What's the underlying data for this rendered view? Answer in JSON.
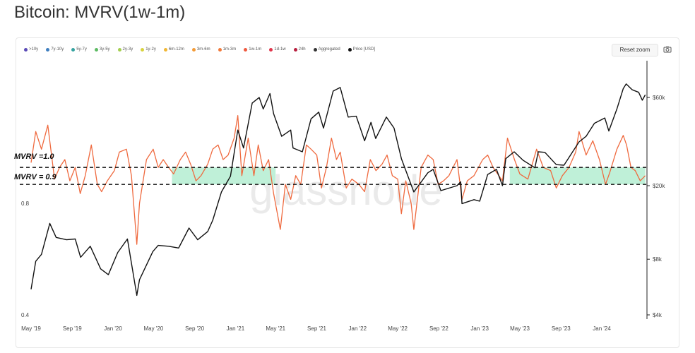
{
  "title": "Bitcoin: MVRV(1w-1m)",
  "legend": [
    {
      "label": ">10y",
      "color": "#5b4bb7"
    },
    {
      "label": "7y-10y",
      "color": "#3f7fc0"
    },
    {
      "label": "5y-7y",
      "color": "#36a3a0"
    },
    {
      "label": "3y-5y",
      "color": "#5dbb63"
    },
    {
      "label": "2y-3y",
      "color": "#a4cf4f"
    },
    {
      "label": "1y-2y",
      "color": "#d8d33e"
    },
    {
      "label": "6m-12m",
      "color": "#f1b735"
    },
    {
      "label": "3m-6m",
      "color": "#f39b38"
    },
    {
      "label": "1m-3m",
      "color": "#f27a3b"
    },
    {
      "label": "1w-1m",
      "color": "#ef5a3f"
    },
    {
      "label": "1d-1w",
      "color": "#e0354b"
    },
    {
      "label": "24h",
      "color": "#b8203f"
    },
    {
      "label": "Aggregated",
      "color": "#333333"
    },
    {
      "label": "Price [USD]",
      "color": "#111111"
    }
  ],
  "toolbar": {
    "reset_label": "Reset zoom",
    "camera_icon": "camera-icon"
  },
  "watermark": "glassnode",
  "annotations": {
    "upper": "MVRV =1.0",
    "lower": "MVRV = 0.9",
    "band_color": "#bff0d8"
  },
  "chart_data": {
    "type": "line",
    "x": [
      "May '19",
      "Sep '19",
      "Jan '20",
      "May '20",
      "Sep '20",
      "Jan '21",
      "May '21",
      "Sep '21",
      "Jan '22",
      "May '22",
      "Sep '22",
      "Jan '23",
      "May '23",
      "Sep '23",
      "Jan '24"
    ],
    "left_axis": {
      "scale": "log",
      "ticks": [
        "0.8",
        "0.4"
      ],
      "ylim": [
        0.4,
        1.5
      ]
    },
    "right_axis": {
      "scale": "log",
      "ticks": [
        "$60k",
        "$20k",
        "$8k",
        "$4k"
      ],
      "ylim": [
        4000,
        90000
      ]
    },
    "colors": {
      "price": "#111111",
      "mvrv": "#ef6a3f"
    },
    "series": [
      {
        "name": "1w-1m",
        "axis": "left",
        "points": [
          [
            "2019-05-01",
            1.03
          ],
          [
            "2019-05-15",
            1.25
          ],
          [
            "2019-06-01",
            1.12
          ],
          [
            "2019-06-20",
            1.3
          ],
          [
            "2019-07-10",
            0.93
          ],
          [
            "2019-07-25",
            1.0
          ],
          [
            "2019-08-10",
            1.05
          ],
          [
            "2019-08-25",
            0.92
          ],
          [
            "2019-09-10",
            1.0
          ],
          [
            "2019-09-25",
            0.85
          ],
          [
            "2019-10-10",
            0.95
          ],
          [
            "2019-10-28",
            1.15
          ],
          [
            "2019-11-15",
            0.9
          ],
          [
            "2019-11-28",
            0.86
          ],
          [
            "2019-12-15",
            0.92
          ],
          [
            "2020-01-05",
            0.98
          ],
          [
            "2020-01-20",
            1.1
          ],
          [
            "2020-02-10",
            1.12
          ],
          [
            "2020-02-25",
            0.95
          ],
          [
            "2020-03-12",
            0.62
          ],
          [
            "2020-03-20",
            0.8
          ],
          [
            "2020-04-10",
            1.05
          ],
          [
            "2020-04-30",
            1.12
          ],
          [
            "2020-05-15",
            1.0
          ],
          [
            "2020-05-30",
            1.05
          ],
          [
            "2020-06-15",
            1.0
          ],
          [
            "2020-06-30",
            0.96
          ],
          [
            "2020-07-20",
            1.05
          ],
          [
            "2020-08-05",
            1.1
          ],
          [
            "2020-08-20",
            1.02
          ],
          [
            "2020-09-05",
            0.92
          ],
          [
            "2020-09-20",
            0.95
          ],
          [
            "2020-10-10",
            1.02
          ],
          [
            "2020-10-25",
            1.12
          ],
          [
            "2020-11-10",
            1.15
          ],
          [
            "2020-11-25",
            1.05
          ],
          [
            "2020-12-10",
            1.08
          ],
          [
            "2020-12-28",
            1.2
          ],
          [
            "2021-01-08",
            1.38
          ],
          [
            "2021-01-20",
            0.95
          ],
          [
            "2021-02-08",
            1.2
          ],
          [
            "2021-02-25",
            0.95
          ],
          [
            "2021-03-10",
            1.15
          ],
          [
            "2021-03-25",
            0.98
          ],
          [
            "2021-04-10",
            1.05
          ],
          [
            "2021-04-25",
            0.85
          ],
          [
            "2021-05-15",
            0.68
          ],
          [
            "2021-05-30",
            0.9
          ],
          [
            "2021-06-15",
            0.82
          ],
          [
            "2021-06-30",
            0.95
          ],
          [
            "2021-07-15",
            0.9
          ],
          [
            "2021-08-01",
            1.15
          ],
          [
            "2021-08-15",
            1.12
          ],
          [
            "2021-09-01",
            1.08
          ],
          [
            "2021-09-15",
            0.88
          ],
          [
            "2021-09-30",
            1.0
          ],
          [
            "2021-10-15",
            1.2
          ],
          [
            "2021-10-30",
            1.05
          ],
          [
            "2021-11-10",
            1.1
          ],
          [
            "2021-11-28",
            0.88
          ],
          [
            "2021-12-15",
            0.93
          ],
          [
            "2022-01-05",
            0.9
          ],
          [
            "2022-01-22",
            0.86
          ],
          [
            "2022-02-08",
            1.05
          ],
          [
            "2022-02-25",
            0.98
          ],
          [
            "2022-03-15",
            1.02
          ],
          [
            "2022-03-30",
            1.08
          ],
          [
            "2022-04-15",
            0.95
          ],
          [
            "2022-05-01",
            0.93
          ],
          [
            "2022-05-12",
            0.75
          ],
          [
            "2022-05-25",
            0.92
          ],
          [
            "2022-06-10",
            0.8
          ],
          [
            "2022-06-18",
            0.68
          ],
          [
            "2022-07-10",
            1.0
          ],
          [
            "2022-07-30",
            1.08
          ],
          [
            "2022-08-15",
            1.05
          ],
          [
            "2022-08-30",
            0.9
          ],
          [
            "2022-09-15",
            0.92
          ],
          [
            "2022-10-01",
            0.95
          ],
          [
            "2022-10-25",
            1.05
          ],
          [
            "2022-11-09",
            0.82
          ],
          [
            "2022-11-25",
            0.92
          ],
          [
            "2022-12-15",
            0.95
          ],
          [
            "2023-01-10",
            1.05
          ],
          [
            "2023-01-25",
            1.08
          ],
          [
            "2023-02-10",
            1.0
          ],
          [
            "2023-03-10",
            0.92
          ],
          [
            "2023-03-25",
            1.2
          ],
          [
            "2023-04-15",
            1.05
          ],
          [
            "2023-05-01",
            0.96
          ],
          [
            "2023-05-25",
            0.93
          ],
          [
            "2023-06-20",
            1.12
          ],
          [
            "2023-07-10",
            1.0
          ],
          [
            "2023-08-01",
            0.98
          ],
          [
            "2023-08-18",
            0.88
          ],
          [
            "2023-09-05",
            0.95
          ],
          [
            "2023-09-25",
            1.0
          ],
          [
            "2023-10-15",
            1.1
          ],
          [
            "2023-10-25",
            1.25
          ],
          [
            "2023-11-15",
            1.08
          ],
          [
            "2023-12-05",
            1.18
          ],
          [
            "2023-12-25",
            1.05
          ],
          [
            "2024-01-12",
            0.9
          ],
          [
            "2024-01-25",
            0.97
          ],
          [
            "2024-02-15",
            1.12
          ],
          [
            "2024-03-05",
            1.22
          ],
          [
            "2024-03-15",
            1.15
          ],
          [
            "2024-03-28",
            1.0
          ],
          [
            "2024-04-10",
            0.98
          ],
          [
            "2024-04-25",
            0.92
          ],
          [
            "2024-05-10",
            0.95
          ]
        ]
      },
      {
        "name": "Price [USD]",
        "axis": "right",
        "points": [
          [
            "2019-05-01",
            5500
          ],
          [
            "2019-05-15",
            7800
          ],
          [
            "2019-06-01",
            8500
          ],
          [
            "2019-06-26",
            12500
          ],
          [
            "2019-07-15",
            10500
          ],
          [
            "2019-08-15",
            10200
          ],
          [
            "2019-09-10",
            10300
          ],
          [
            "2019-09-26",
            8200
          ],
          [
            "2019-10-25",
            9400
          ],
          [
            "2019-11-25",
            7100
          ],
          [
            "2019-12-18",
            6600
          ],
          [
            "2020-01-15",
            8700
          ],
          [
            "2020-02-13",
            10300
          ],
          [
            "2020-03-12",
            5100
          ],
          [
            "2020-03-20",
            6200
          ],
          [
            "2020-04-29",
            8800
          ],
          [
            "2020-05-15",
            9500
          ],
          [
            "2020-06-15",
            9400
          ],
          [
            "2020-07-15",
            9200
          ],
          [
            "2020-08-15",
            11800
          ],
          [
            "2020-09-10",
            10200
          ],
          [
            "2020-10-10",
            11300
          ],
          [
            "2020-10-25",
            13000
          ],
          [
            "2020-11-20",
            18500
          ],
          [
            "2020-12-17",
            22500
          ],
          [
            "2021-01-08",
            40000
          ],
          [
            "2021-01-25",
            32000
          ],
          [
            "2021-02-20",
            56000
          ],
          [
            "2021-03-13",
            60000
          ],
          [
            "2021-03-25",
            52000
          ],
          [
            "2021-04-14",
            63000
          ],
          [
            "2021-04-25",
            49000
          ],
          [
            "2021-05-19",
            37000
          ],
          [
            "2021-06-15",
            40000
          ],
          [
            "2021-06-22",
            32000
          ],
          [
            "2021-07-20",
            30500
          ],
          [
            "2021-08-15",
            46000
          ],
          [
            "2021-09-07",
            50000
          ],
          [
            "2021-09-21",
            41000
          ],
          [
            "2021-10-20",
            65000
          ],
          [
            "2021-11-10",
            68000
          ],
          [
            "2021-12-04",
            47000
          ],
          [
            "2021-12-28",
            47500
          ],
          [
            "2022-01-22",
            35000
          ],
          [
            "2022-02-10",
            44000
          ],
          [
            "2022-02-24",
            36000
          ],
          [
            "2022-03-28",
            47000
          ],
          [
            "2022-04-20",
            41000
          ],
          [
            "2022-05-12",
            28000
          ],
          [
            "2022-06-18",
            18500
          ],
          [
            "2022-07-30",
            23500
          ],
          [
            "2022-08-15",
            24500
          ],
          [
            "2022-09-07",
            18800
          ],
          [
            "2022-10-25",
            20000
          ],
          [
            "2022-11-05",
            21000
          ],
          [
            "2022-11-09",
            16000
          ],
          [
            "2022-12-15",
            16800
          ],
          [
            "2023-01-01",
            16500
          ],
          [
            "2023-01-25",
            23000
          ],
          [
            "2023-02-20",
            24500
          ],
          [
            "2023-03-10",
            20000
          ],
          [
            "2023-03-20",
            28000
          ],
          [
            "2023-04-14",
            30500
          ],
          [
            "2023-05-10",
            27500
          ],
          [
            "2023-06-15",
            25000
          ],
          [
            "2023-06-25",
            30500
          ],
          [
            "2023-07-15",
            30300
          ],
          [
            "2023-08-18",
            26000
          ],
          [
            "2023-09-10",
            25800
          ],
          [
            "2023-10-25",
            34500
          ],
          [
            "2023-11-15",
            37000
          ],
          [
            "2023-12-10",
            43500
          ],
          [
            "2024-01-10",
            46500
          ],
          [
            "2024-01-22",
            39500
          ],
          [
            "2024-02-15",
            52000
          ],
          [
            "2024-03-05",
            67000
          ],
          [
            "2024-03-14",
            71000
          ],
          [
            "2024-04-01",
            66000
          ],
          [
            "2024-04-20",
            64000
          ],
          [
            "2024-05-01",
            58000
          ],
          [
            "2024-05-10",
            62000
          ]
        ]
      }
    ]
  }
}
